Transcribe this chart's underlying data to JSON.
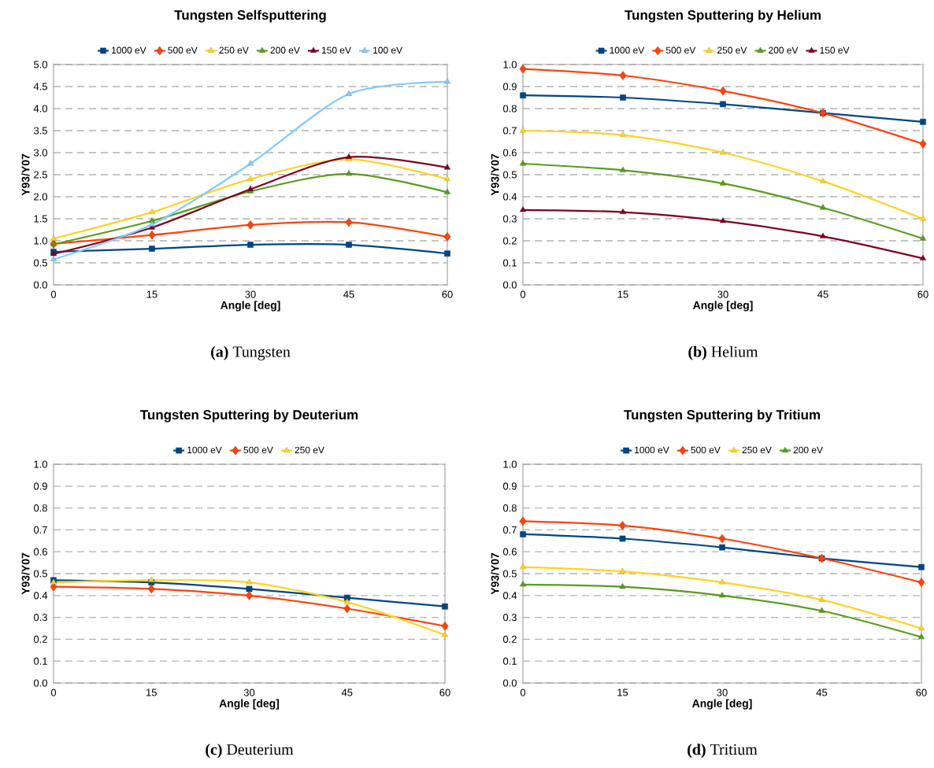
{
  "chart_data": [
    {
      "type": "line",
      "title": "Tungsten Selfsputtering",
      "xlabel": "Angle [deg]",
      "ylabel": "Y93/Y07",
      "x": [
        0,
        15,
        30,
        45,
        60
      ],
      "xlim": [
        0,
        60
      ],
      "xticks": [
        0,
        15,
        30,
        45,
        60
      ],
      "ylim": [
        0,
        5
      ],
      "yticks": [
        {
          "value": 0,
          "label": "0.0"
        },
        {
          "value": 0.5,
          "label": "0.5"
        },
        {
          "value": 1,
          "label": "1.0"
        },
        {
          "value": 1.5,
          "label": "1.5"
        },
        {
          "value": 2,
          "label": "2.0"
        },
        {
          "value": 2.5,
          "label": "2.5"
        },
        {
          "value": 3,
          "label": "3.0"
        },
        {
          "value": 3.5,
          "label": "3.5"
        },
        {
          "value": 4,
          "label": "4.0"
        },
        {
          "value": 4.5,
          "label": "4.5"
        },
        {
          "value": 5,
          "label": "5.0"
        }
      ],
      "grid": "y",
      "legend": "top",
      "annotations": [
        "**(a)** Tungsten"
      ],
      "series": [
        {
          "name": "1000 eV",
          "color": "#004586",
          "marker": "square",
          "values": [
            0.75,
            0.82,
            0.91,
            0.91,
            0.71
          ]
        },
        {
          "name": "500 eV",
          "color": "#ff420e",
          "marker": "diamond",
          "values": [
            0.93,
            1.13,
            1.36,
            1.42,
            1.09
          ]
        },
        {
          "name": "250 eV",
          "color": "#ffd320",
          "marker": "triangle",
          "values": [
            1.05,
            1.65,
            2.4,
            2.85,
            2.4
          ]
        },
        {
          "name": "200 eV",
          "color": "#579d1c",
          "marker": "triangle",
          "values": [
            0.92,
            1.45,
            2.12,
            2.52,
            2.1
          ]
        },
        {
          "name": "150 eV",
          "color": "#7e0021",
          "marker": "triangle",
          "values": [
            0.7,
            1.3,
            2.17,
            2.9,
            2.66
          ]
        },
        {
          "name": "100 eV",
          "color": "#83caff",
          "marker": "triangle",
          "values": [
            0.58,
            1.37,
            2.75,
            4.33,
            4.61
          ]
        }
      ]
    },
    {
      "type": "line",
      "title": "Tungsten Sputtering by Helium",
      "xlabel": "Angle [deg]",
      "ylabel": "Y93/Y07",
      "x": [
        0,
        15,
        30,
        45,
        60
      ],
      "xlim": [
        0,
        60
      ],
      "xticks": [
        0,
        15,
        30,
        45,
        60
      ],
      "ylim": [
        0,
        1
      ],
      "yticks": [
        {
          "value": 0,
          "label": "0.0"
        },
        0.1,
        0.2,
        0.3,
        0.4,
        0.5,
        0.6,
        0.7,
        0.8,
        0.9,
        {
          "value": 1,
          "label": "1.0"
        }
      ],
      "grid": "y",
      "legend": "top",
      "annotations": [
        "**(b)** Helium"
      ],
      "series": [
        {
          "name": "1000 eV",
          "color": "#004586",
          "marker": "square",
          "values": [
            0.86,
            0.85,
            0.82,
            0.78,
            0.74
          ]
        },
        {
          "name": "500 eV",
          "color": "#ff420e",
          "marker": "diamond",
          "values": [
            0.98,
            0.95,
            0.88,
            0.78,
            0.64
          ]
        },
        {
          "name": "250 eV",
          "color": "#ffd320",
          "marker": "triangle",
          "values": [
            0.7,
            0.68,
            0.6,
            0.47,
            0.3
          ]
        },
        {
          "name": "200 eV",
          "color": "#579d1c",
          "marker": "triangle",
          "values": [
            0.55,
            0.52,
            0.46,
            0.35,
            0.21
          ]
        },
        {
          "name": "150 eV",
          "color": "#7e0021",
          "marker": "triangle",
          "values": [
            0.34,
            0.33,
            0.29,
            0.22,
            0.12
          ]
        }
      ]
    },
    {
      "type": "line",
      "title": "Tungsten Sputtering by Deuterium",
      "xlabel": "Angle [deg]",
      "ylabel": "Y93/Y07",
      "x": [
        0,
        15,
        30,
        45,
        60
      ],
      "xlim": [
        0,
        60
      ],
      "xticks": [
        0,
        15,
        30,
        45,
        60
      ],
      "ylim": [
        0,
        1
      ],
      "yticks": [
        {
          "value": 0,
          "label": "0.0"
        },
        0.1,
        0.2,
        0.3,
        0.4,
        0.5,
        0.6,
        0.7,
        0.8,
        0.9,
        {
          "value": 1,
          "label": "1.0"
        }
      ],
      "grid": "y",
      "legend": "top",
      "annotations": [
        "**(c)** Deuterium"
      ],
      "series": [
        {
          "name": "1000 eV",
          "color": "#004586",
          "marker": "square",
          "values": [
            0.47,
            0.46,
            0.43,
            0.39,
            0.35
          ]
        },
        {
          "name": "500 eV",
          "color": "#ff420e",
          "marker": "diamond",
          "values": [
            0.44,
            0.43,
            0.4,
            0.34,
            0.26
          ]
        },
        {
          "name": "250 eV",
          "color": "#ffd320",
          "marker": "triangle",
          "values": [
            0.46,
            0.47,
            0.46,
            0.37,
            0.22
          ]
        }
      ]
    },
    {
      "type": "line",
      "title": "Tungsten Sputtering by Tritium",
      "xlabel": "Angle [deg]",
      "ylabel": "Y93/Y07",
      "x": [
        0,
        15,
        30,
        45,
        60
      ],
      "xlim": [
        0,
        60
      ],
      "xticks": [
        0,
        15,
        30,
        45,
        60
      ],
      "ylim": [
        0,
        1
      ],
      "yticks": [
        {
          "value": 0,
          "label": "0.0"
        },
        0.1,
        0.2,
        0.3,
        0.4,
        0.5,
        0.6,
        0.7,
        0.8,
        0.9,
        {
          "value": 1,
          "label": "1.0"
        }
      ],
      "grid": "y",
      "legend": "top",
      "annotations": [
        "**(d)** Tritium"
      ],
      "series": [
        {
          "name": "1000 eV",
          "color": "#004586",
          "marker": "square",
          "values": [
            0.68,
            0.66,
            0.62,
            0.57,
            0.53
          ]
        },
        {
          "name": "500 eV",
          "color": "#ff420e",
          "marker": "diamond",
          "values": [
            0.74,
            0.72,
            0.66,
            0.57,
            0.46
          ]
        },
        {
          "name": "250 eV",
          "color": "#ffd320",
          "marker": "triangle",
          "values": [
            0.53,
            0.51,
            0.46,
            0.38,
            0.25
          ]
        },
        {
          "name": "200 eV",
          "color": "#579d1c",
          "marker": "triangle",
          "values": [
            0.45,
            0.44,
            0.4,
            0.33,
            0.21
          ]
        }
      ]
    }
  ]
}
